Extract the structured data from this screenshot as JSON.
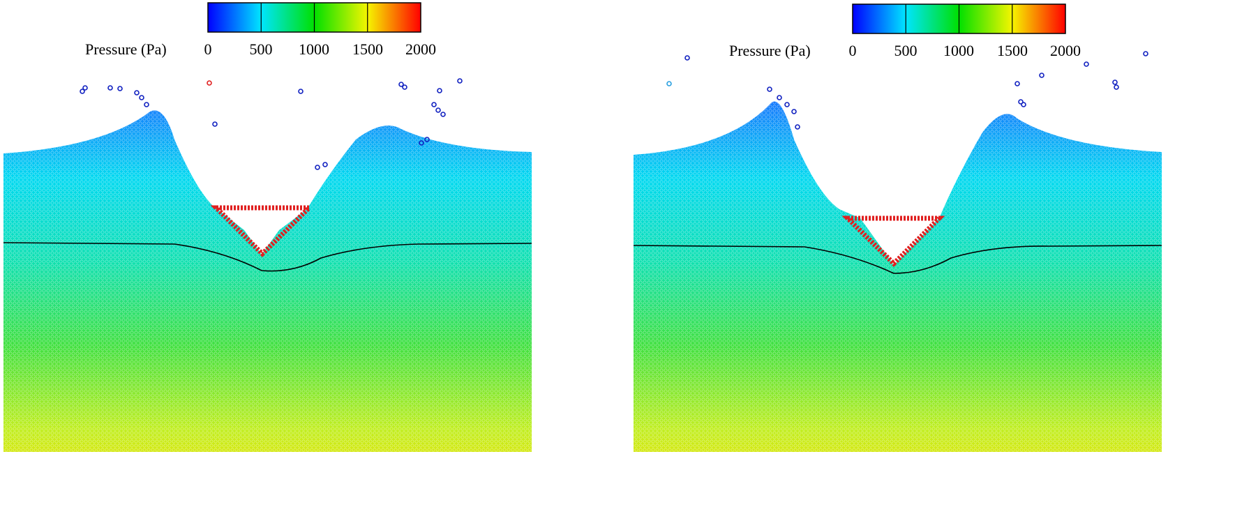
{
  "colorbar": {
    "label": "Pressure (Pa)",
    "ticks": [
      "0",
      "500",
      "1000",
      "1500",
      "2000"
    ],
    "range": [
      0,
      2000
    ],
    "colors": [
      "#0000ff",
      "#00e5ff",
      "#00e000",
      "#f5f500",
      "#ff0000"
    ]
  },
  "chart_data": [
    {
      "type": "heatmap",
      "title": "",
      "quantity": "Pressure (Pa)",
      "value_range": [
        0,
        2000
      ],
      "pressure_profile": [
        {
          "location": "top free surface",
          "value": 0
        },
        {
          "location": "interface level",
          "value": 600
        },
        {
          "location": "mid depth",
          "value": 1000
        },
        {
          "location": "bottom",
          "value": 1700
        }
      ],
      "body": "triangle (red)",
      "interface": "black line"
    },
    {
      "type": "heatmap",
      "title": "",
      "quantity": "Pressure (Pa)",
      "value_range": [
        0,
        2000
      ],
      "pressure_profile": [
        {
          "location": "top free surface",
          "value": 0
        },
        {
          "location": "interface level",
          "value": 600
        },
        {
          "location": "mid depth",
          "value": 1000
        },
        {
          "location": "bottom",
          "value": 1700
        }
      ],
      "body": "triangle (red)",
      "interface": "black line"
    }
  ]
}
